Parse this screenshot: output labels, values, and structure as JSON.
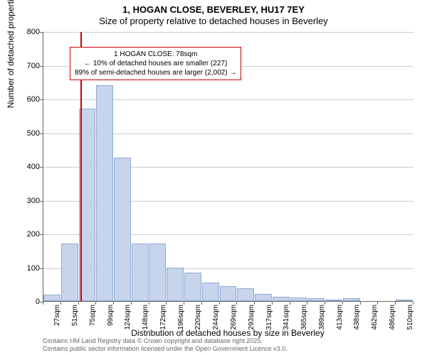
{
  "title": "1, HOGAN CLOSE, BEVERLEY, HU17 7EY",
  "subtitle": "Size of property relative to detached houses in Beverley",
  "ylabel": "Number of detached properties",
  "xlabel": "Distribution of detached houses by size in Beverley",
  "annotation": {
    "line1": "1 HOGAN CLOSE: 78sqm",
    "line2": "← 10% of detached houses are smaller (227)",
    "line3": "89% of semi-detached houses are larger (2,002) →"
  },
  "copyright": {
    "line1": "Contains HM Land Registry data © Crown copyright and database right 2025.",
    "line2": "Contains public sector information licensed under the Open Government Licence v3.0."
  },
  "chart": {
    "type": "histogram",
    "ylim": [
      0,
      800
    ],
    "ytick_step": 100,
    "background_color": "#ffffff",
    "grid_color": "#cccccc",
    "bar_fill": "#c7d5ec",
    "bar_border": "#8faad3",
    "vline_color": "#cc0000",
    "vline_x": 78,
    "x_categories": [
      "27sqm",
      "51sqm",
      "75sqm",
      "99sqm",
      "124sqm",
      "148sqm",
      "172sqm",
      "196sqm",
      "220sqm",
      "244sqm",
      "269sqm",
      "293sqm",
      "317sqm",
      "341sqm",
      "365sqm",
      "389sqm",
      "413sqm",
      "438sqm",
      "462sqm",
      "486sqm",
      "510sqm"
    ],
    "values": [
      20,
      170,
      570,
      640,
      425,
      170,
      170,
      100,
      85,
      55,
      45,
      38,
      22,
      12,
      10,
      8,
      2,
      8,
      0,
      0,
      5
    ],
    "title_fontsize": 13,
    "label_fontsize": 12,
    "tick_fontsize": 11,
    "annotation_fontsize": 10
  }
}
